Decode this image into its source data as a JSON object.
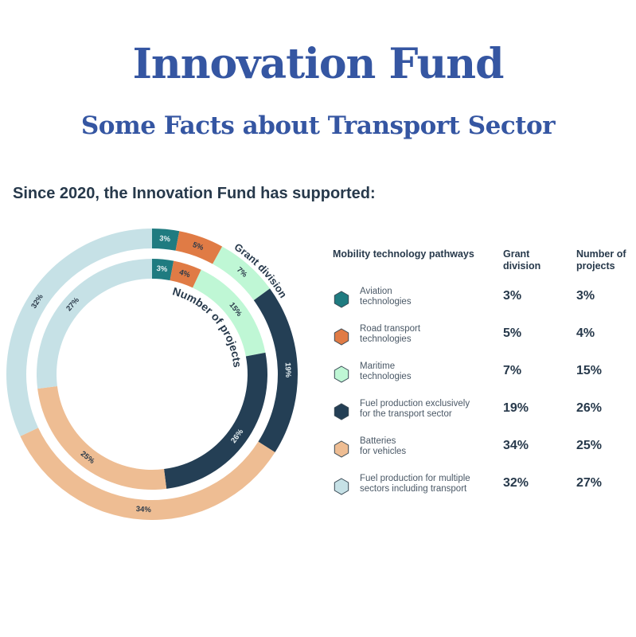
{
  "header": {
    "title": "Innovation Fund",
    "subtitle": "Some Facts about Transport Sector"
  },
  "lead": "Since 2020, the Innovation Fund has supported:",
  "chart_data": {
    "type": "pie",
    "variant": "concentric-donut",
    "categories": [
      "Aviation technologies",
      "Road transport technologies",
      "Maritime technologies",
      "Fuel production exclusively for the transport sector",
      "Batteries for vehicles",
      "Fuel production for multiple sectors including transport"
    ],
    "colors": [
      "#1f7b80",
      "#e07b45",
      "#bff7d5",
      "#243f55",
      "#eebd93",
      "#c6e1e6"
    ],
    "series": [
      {
        "name": "Grant division",
        "ring": "outer",
        "values": [
          3,
          5,
          7,
          19,
          34,
          32
        ],
        "labels": [
          "3%",
          "5%",
          "7%",
          "19%",
          "34%",
          "32%"
        ]
      },
      {
        "name": "Number of projects",
        "ring": "inner",
        "values": [
          3,
          4,
          15,
          26,
          25,
          27
        ],
        "labels": [
          "3%",
          "4%",
          "15%",
          "26%",
          "25%",
          "27%"
        ]
      }
    ]
  },
  "table": {
    "headers": [
      "Mobility technology pathways",
      "Grant division",
      "Number of projects"
    ],
    "rows": [
      {
        "label": "Aviation technologies",
        "line1": "Aviation",
        "line2": "technologies",
        "grant": "3%",
        "projects": "3%"
      },
      {
        "label": "Road transport technologies",
        "line1": "Road transport",
        "line2": "technologies",
        "grant": "5%",
        "projects": "4%"
      },
      {
        "label": "Maritime technologies",
        "line1": "Maritime",
        "line2": "technologies",
        "grant": "7%",
        "projects": "15%"
      },
      {
        "label": "Fuel production exclusively for the transport sector",
        "line1": "Fuel production exclusively",
        "line2": "for the transport sector",
        "grant": "19%",
        "projects": "26%"
      },
      {
        "label": "Batteries for vehicles",
        "line1": "Batteries",
        "line2": "for vehicles",
        "grant": "34%",
        "projects": "25%"
      },
      {
        "label": "Fuel production for multiple sectors including transport",
        "line1": "Fuel production for multiple",
        "line2": "sectors including transport",
        "grant": "32%",
        "projects": "27%"
      }
    ]
  }
}
